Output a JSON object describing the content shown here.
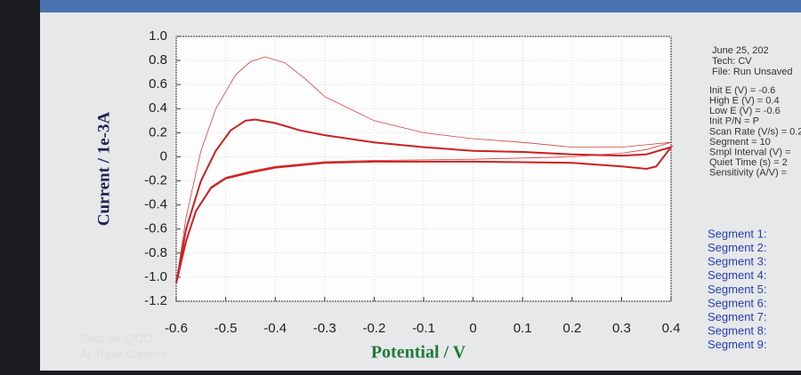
{
  "chart_data": {
    "type": "line",
    "xlabel": "Potential / V",
    "ylabel": "Current / 1e-3A",
    "xlim": [
      -0.6,
      0.4
    ],
    "xticks": [
      -0.6,
      -0.5,
      -0.4,
      -0.3,
      -0.2,
      -0.1,
      0,
      0.1,
      0.2,
      0.3,
      0.4
    ],
    "ylim": [
      -1.2,
      1.0
    ],
    "yticks": [
      {
        "value": 1,
        "label": "1.0"
      },
      0.8,
      0.6,
      0.4,
      0.2,
      0,
      -0.2,
      -0.4,
      -0.6,
      -0.8,
      {
        "value": -1,
        "label": "-1.0"
      },
      -1.2
    ],
    "grid": true,
    "series": [
      {
        "color": "#d04040",
        "width": 0.8,
        "x": [
          -0.6,
          -0.58,
          -0.55,
          -0.52,
          -0.48,
          -0.45,
          -0.42,
          -0.38,
          -0.34,
          -0.3,
          -0.2,
          -0.1,
          0,
          0.1,
          0.2,
          0.3,
          0.35,
          0.4,
          0.35,
          0.3,
          0.2,
          0,
          -0.2,
          -0.3,
          -0.4,
          -0.45,
          -0.5,
          -0.53,
          -0.56,
          -0.58,
          -0.6
        ],
        "values": [
          -1.05,
          -0.5,
          0.05,
          0.4,
          0.68,
          0.79,
          0.83,
          0.78,
          0.65,
          0.5,
          0.3,
          0.2,
          0.15,
          0.12,
          0.08,
          0.08,
          0.1,
          0.12,
          0.06,
          0.03,
          0.0,
          -0.02,
          -0.03,
          -0.04,
          -0.08,
          -0.12,
          -0.17,
          -0.25,
          -0.45,
          -0.7,
          -1.05
        ]
      },
      {
        "color": "#cc2020",
        "width": 2,
        "x": [
          -0.6,
          -0.58,
          -0.55,
          -0.52,
          -0.49,
          -0.46,
          -0.44,
          -0.4,
          -0.35,
          -0.3,
          -0.2,
          -0.1,
          0,
          0.1,
          0.2,
          0.3,
          0.35,
          0.4,
          0.37,
          0.35,
          0.3,
          0.2,
          0,
          -0.2,
          -0.3,
          -0.4,
          -0.45,
          -0.5,
          -0.53,
          -0.56,
          -0.58,
          -0.6
        ],
        "values": [
          -1.05,
          -0.6,
          -0.2,
          0.05,
          0.22,
          0.3,
          0.31,
          0.28,
          0.22,
          0.18,
          0.12,
          0.08,
          0.05,
          0.04,
          0.02,
          0.01,
          0.02,
          0.08,
          -0.08,
          -0.1,
          -0.08,
          -0.05,
          -0.04,
          -0.04,
          -0.05,
          -0.09,
          -0.13,
          -0.18,
          -0.26,
          -0.45,
          -0.7,
          -1.05
        ]
      }
    ]
  },
  "info_panel": [
    "June 25, 202",
    "Tech: CV",
    "File: Run Unsaved",
    "Init E (V) = -0.6",
    "High E (V) = 0.4",
    "Low E (V) = -0.6",
    "Init P/N = P",
    "Scan Rate (V/s) = 0.2",
    "Segment = 10",
    "Smpl Interval (V) =",
    "Quiet Time (s) = 2",
    "Sensitivity (A/V) ="
  ],
  "segments": [
    "Segment 1:",
    "Segment 2:",
    "Segment 3:",
    "Segment 4:",
    "Segment 5:",
    "Segment 6:",
    "Segment 7:",
    "Segment 8:",
    "Segment 9:"
  ],
  "watermark": [
    "Shot on iQOO",
    "AI Triple Camera"
  ]
}
